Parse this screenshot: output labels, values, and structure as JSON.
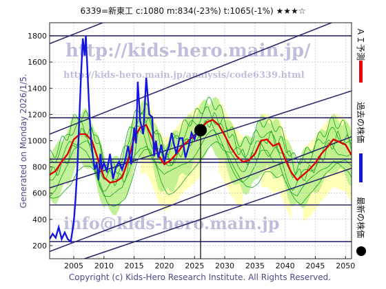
{
  "header": {
    "title": "6339=新東工    c:1080  m:834(-23%)  t:1065(-1%)  ★★★☆"
  },
  "generated": "Generated on Monday 2026/1/5.",
  "copyright": "Copyright (c) Kids-Hero Research Institute. All Rights Reserved.",
  "watermarks": {
    "url": "http://kids-hero.main.jp/",
    "analysis": "http://kids-hero.main.jp/analysis/code6339.html",
    "email": "info@kids-hero.main.jp"
  },
  "legend": {
    "ai": "ＡＩ予測",
    "past": "過去の株価",
    "latest": "最新の株価"
  },
  "colors": {
    "past": "#1515e0",
    "ai": "#e00000",
    "band": "#22aa22",
    "band_fill": "#b8ee88",
    "yellow": "#ffffb0",
    "channel": "#2a2a6a",
    "hline": "#2a2a6a"
  },
  "chart_data": {
    "type": "line",
    "title": "6339=新東工    c:1080  m:834(-23%)  t:1065(-1%)  ★★★☆",
    "xlabel": "",
    "ylabel": "",
    "xlim": [
      2001,
      2051
    ],
    "ylim": [
      100,
      1900
    ],
    "x_ticks": [
      2005,
      2010,
      2015,
      2020,
      2025,
      2030,
      2035,
      2040,
      2045,
      2050
    ],
    "y_ticks": [
      200,
      400,
      600,
      800,
      1000,
      1200,
      1400,
      1600,
      1800
    ],
    "grid": true,
    "legend_position": "right (vertical)",
    "current_point": {
      "x": 2026.0,
      "y": 1080
    },
    "horizontal_levels": [
      1800,
      1175,
      860,
      835,
      510,
      230
    ],
    "channel_lines": [
      {
        "x0": 2001,
        "y0": 1740,
        "x1": 2051,
        "y1": 2650
      },
      {
        "x0": 2001,
        "y0": 1050,
        "x1": 2051,
        "y1": 1960
      },
      {
        "x0": 2001,
        "y0": 640,
        "x1": 2051,
        "y1": 1380
      },
      {
        "x0": 2001,
        "y0": 155,
        "x1": 2051,
        "y1": 1030
      },
      {
        "x0": 2001,
        "y0": 10,
        "x1": 2051,
        "y1": 790
      }
    ],
    "series": [
      {
        "name": "過去の株価",
        "x": [
          2001.0,
          2001.5,
          2002.0,
          2002.5,
          2003.0,
          2003.5,
          2004.0,
          2004.5,
          2005.0,
          2005.3,
          2005.6,
          2005.9,
          2006.2,
          2006.5,
          2006.8,
          2007.0,
          2007.3,
          2007.6,
          2007.9,
          2008.2,
          2008.5,
          2008.8,
          2009.1,
          2009.4,
          2009.7,
          2010.0,
          2010.5,
          2011.0,
          2011.5,
          2012.0,
          2012.5,
          2013.0,
          2013.5,
          2014.0,
          2014.5,
          2015.0,
          2015.3,
          2015.6,
          2016.0,
          2016.5,
          2017.0,
          2017.5,
          2018.0,
          2018.3,
          2018.6,
          2019.0,
          2019.5,
          2020.0,
          2020.4,
          2020.8,
          2021.2,
          2021.6,
          2022.0,
          2022.5,
          2023.0,
          2023.5,
          2024.0,
          2024.5,
          2025.0,
          2025.5,
          2026.0
        ],
        "values": [
          250,
          290,
          260,
          340,
          250,
          300,
          250,
          230,
          380,
          560,
          800,
          1150,
          1500,
          1780,
          1650,
          1800,
          1500,
          1200,
          980,
          870,
          780,
          830,
          700,
          900,
          780,
          830,
          770,
          900,
          710,
          800,
          840,
          780,
          850,
          960,
          820,
          1100,
          980,
          1450,
          1150,
          1050,
          1480,
          1200,
          1180,
          880,
          1000,
          870,
          970,
          840,
          910,
          960,
          1060,
          970,
          900,
          1020,
          1020,
          870,
          950,
          1060,
          1010,
          1100,
          1080
        ]
      },
      {
        "name": "ＡＩ予測",
        "x": [
          2001.0,
          2002.0,
          2003.0,
          2004.0,
          2005.0,
          2006.0,
          2007.0,
          2008.0,
          2009.0,
          2010.0,
          2011.0,
          2012.0,
          2013.0,
          2014.0,
          2015.0,
          2016.0,
          2017.0,
          2018.0,
          2019.0,
          2020.0,
          2021.0,
          2022.0,
          2023.0,
          2024.0,
          2025.0,
          2026.0,
          2027.0,
          2028.0,
          2029.0,
          2030.0,
          2031.0,
          2032.0,
          2033.0,
          2034.0,
          2035.0,
          2036.0,
          2037.0,
          2038.0,
          2039.0,
          2040.0,
          2041.0,
          2042.0,
          2043.0,
          2044.0,
          2045.0,
          2046.0,
          2047.0,
          2048.0,
          2049.0,
          2050.0,
          2051.0
        ],
        "values": [
          740,
          770,
          840,
          900,
          1010,
          1050,
          1050,
          1000,
          860,
          720,
          680,
          690,
          720,
          850,
          1020,
          1100,
          1120,
          1020,
          890,
          820,
          850,
          900,
          960,
          1000,
          1040,
          1090,
          1140,
          1160,
          1120,
          1040,
          950,
          880,
          840,
          850,
          900,
          1000,
          1010,
          960,
          980,
          860,
          760,
          700,
          740,
          780,
          830,
          900,
          950,
          1010,
          990,
          970,
          890
        ]
      }
    ]
  }
}
